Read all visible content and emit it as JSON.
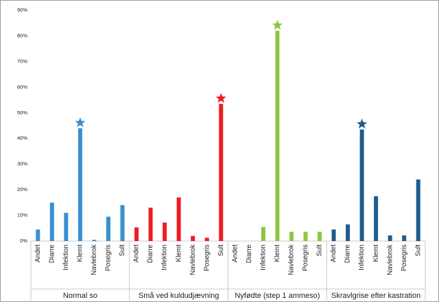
{
  "chart_data": {
    "type": "bar",
    "ylim": [
      0,
      90
    ],
    "yticks": [
      {
        "value": 0,
        "label": "0%"
      },
      {
        "value": 10,
        "label": "10%"
      },
      {
        "value": 20,
        "label": "20%"
      },
      {
        "value": 30,
        "label": "30%"
      },
      {
        "value": 40,
        "label": "40%"
      },
      {
        "value": 50,
        "label": "50%"
      },
      {
        "value": 60,
        "label": "60%"
      },
      {
        "value": 70,
        "label": "70%"
      },
      {
        "value": 80,
        "label": "80%"
      },
      {
        "value": 90,
        "label": "90%"
      }
    ],
    "star_on_max": true,
    "groups": [
      {
        "name": "Normal so",
        "color": "#3a8fd0",
        "categories": [
          "Andet",
          "Diarre",
          "Infektion",
          "Klemt",
          "Navlebrok",
          "Posegris",
          "Sult"
        ],
        "values": [
          4.5,
          15,
          11,
          44,
          0.5,
          9.5,
          14
        ]
      },
      {
        "name": "Små ved kuldudjævning",
        "color": "#ee1c24",
        "categories": [
          "Andet",
          "Diarre",
          "Infektion",
          "Klemt",
          "Navlebrok",
          "Posegris",
          "Sult"
        ],
        "values": [
          5.3,
          13,
          7.2,
          17,
          2,
          1.3,
          53.5
        ]
      },
      {
        "name": "Nyfødte (step 1 ammeso)",
        "color": "#8dc641",
        "categories": [
          "Andet",
          "Diarre",
          "Infektion",
          "Klemt",
          "Navlebrok",
          "Posegris",
          "Sult"
        ],
        "values": [
          0,
          0,
          5.5,
          82,
          3.6,
          3.6,
          3.6
        ]
      },
      {
        "name": "Skravlgrise efter kastration",
        "color": "#1f5b8f",
        "categories": [
          "Andet",
          "Diarre",
          "Infektion",
          "Klemt",
          "Navlebrok",
          "Posegris",
          "Sult"
        ],
        "values": [
          4.5,
          6.5,
          43.5,
          17.5,
          2.2,
          2.2,
          24
        ]
      }
    ]
  }
}
